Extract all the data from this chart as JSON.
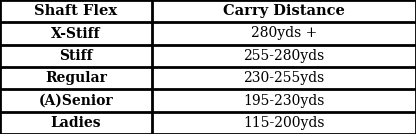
{
  "col_headers": [
    "Shaft Flex",
    "Carry Distance"
  ],
  "rows": [
    [
      "X-Stiff",
      "280yds +"
    ],
    [
      "Stiff",
      "255-280yds"
    ],
    [
      "Regular",
      "230-255yds"
    ],
    [
      "(A)Senior",
      "195-230yds"
    ],
    [
      "Ladies",
      "115-200yds"
    ]
  ],
  "bg_color": "#ffffff",
  "border_color": "#000000",
  "header_font_size": 10.5,
  "row_font_size": 10.0,
  "figsize": [
    4.16,
    1.34
  ],
  "dpi": 100,
  "col_split": 0.365,
  "border_lw": 2.0
}
